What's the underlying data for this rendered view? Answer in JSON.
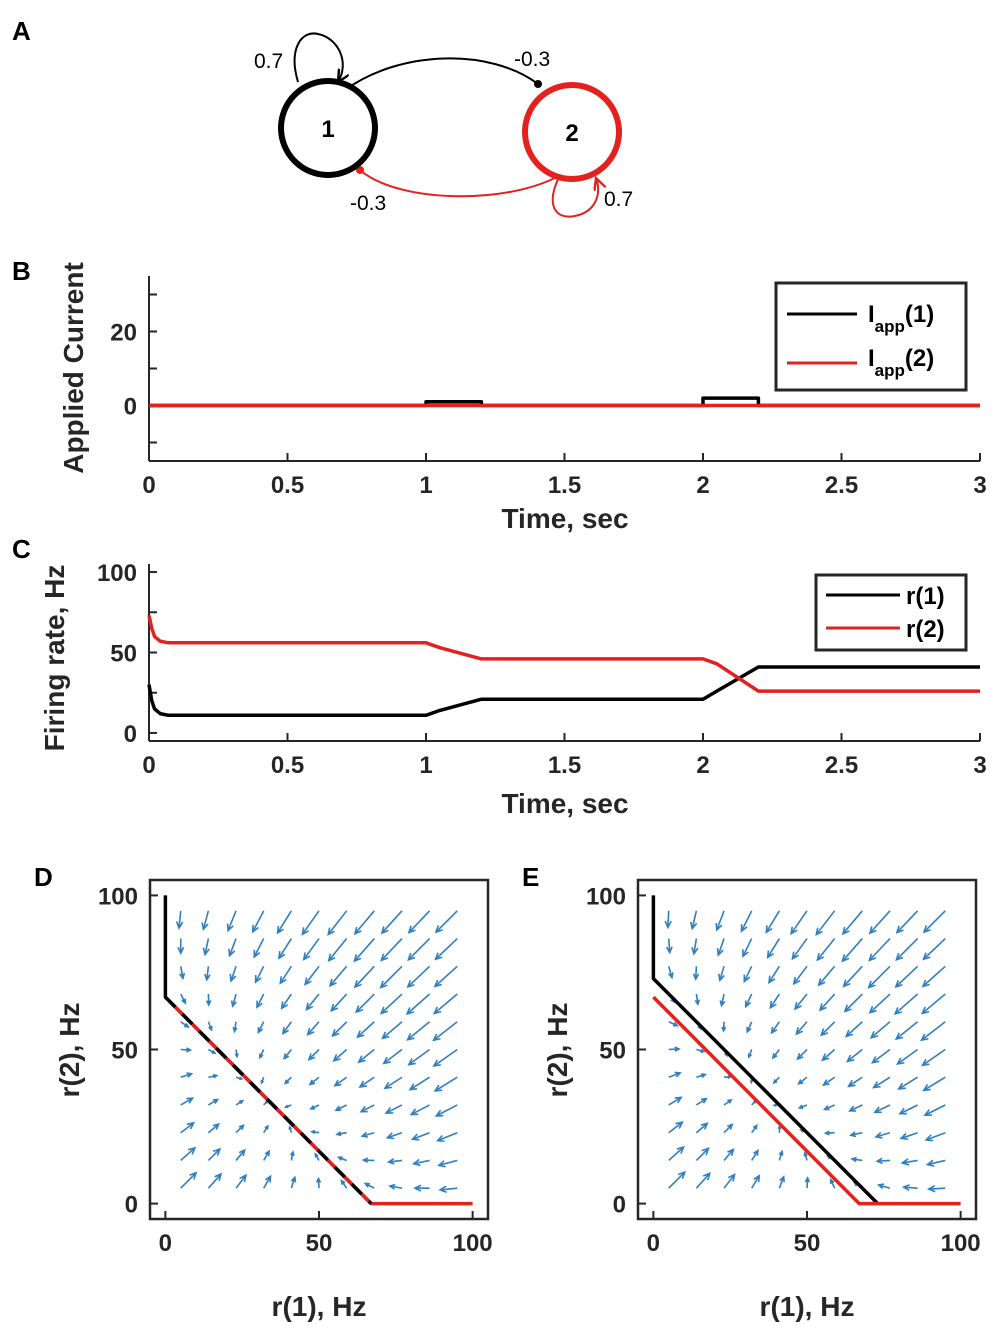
{
  "panel_labels": {
    "A": "A",
    "B": "B",
    "C": "C",
    "D": "D",
    "E": "E"
  },
  "network": {
    "node1": "1",
    "node2": "2",
    "self1": "0.7",
    "self2": "0.7",
    "w12": "-0.3",
    "w21": "-0.3"
  },
  "legend_b": {
    "s1_main": "I",
    "s1_sub": "app",
    "s1_tail": "(1)",
    "s2_main": "I",
    "s2_sub": "app",
    "s2_tail": "(2)"
  },
  "chart_data": [
    {
      "panel": "B",
      "type": "line",
      "xlabel": "Time, sec",
      "ylabel": "Applied Current",
      "xlim": [
        0,
        3
      ],
      "ylim": [
        -15,
        35
      ],
      "xticks": [
        "0",
        "0.5",
        "1",
        "1.5",
        "2",
        "2.5",
        "3"
      ],
      "yticks": [
        "0",
        "20"
      ],
      "series": [
        {
          "name": "Iapp(1)",
          "color": "#000000",
          "x": [
            0,
            1,
            1,
            1.2,
            1.2,
            2,
            2,
            2.2,
            2.2,
            3
          ],
          "y": [
            0,
            0,
            1,
            1,
            0,
            0,
            2,
            2,
            0,
            0
          ]
        },
        {
          "name": "Iapp(2)",
          "color": "#e3211e",
          "x": [
            0,
            3
          ],
          "y": [
            0,
            0
          ]
        }
      ]
    },
    {
      "panel": "C",
      "type": "line",
      "xlabel": "Time, sec",
      "ylabel": "Firing rate, Hz",
      "xlim": [
        0,
        3
      ],
      "ylim": [
        -5,
        105
      ],
      "xticks": [
        "0",
        "0.5",
        "1",
        "1.5",
        "2",
        "2.5",
        "3"
      ],
      "yticks": [
        "0",
        "50",
        "100"
      ],
      "series": [
        {
          "name": "r(1)",
          "color": "#000000",
          "x": [
            0,
            0.01,
            0.02,
            0.04,
            0.07,
            0.1,
            1.0,
            1.05,
            1.2,
            1.25,
            2.0,
            2.05,
            2.2,
            2.25,
            3.0
          ],
          "y": [
            30,
            20,
            15,
            12,
            11,
            11,
            11,
            14,
            21,
            21,
            21,
            26,
            41,
            41,
            41
          ]
        },
        {
          "name": "r(2)",
          "color": "#e3211e",
          "x": [
            0,
            0.01,
            0.02,
            0.04,
            0.07,
            0.1,
            1.0,
            1.05,
            1.2,
            1.25,
            2.0,
            2.05,
            2.2,
            2.25,
            3.0
          ],
          "y": [
            73,
            65,
            60,
            57,
            56,
            56,
            56,
            53,
            46,
            46,
            46,
            43,
            26,
            26,
            26
          ]
        }
      ]
    },
    {
      "panel": "D",
      "type": "line",
      "xlabel": "r(1), Hz",
      "ylabel": "r(2), Hz",
      "xlim": [
        -5,
        105
      ],
      "ylim": [
        -5,
        105
      ],
      "xticks": [
        "0",
        "50",
        "100"
      ],
      "yticks": [
        "0",
        "50",
        "100"
      ],
      "quiver": "vector field toward line r(1)+r(2)=67",
      "series": [
        {
          "name": "nullcline r(1)",
          "color": "#000000",
          "x": [
            0,
            0,
            67
          ],
          "y": [
            100,
            67,
            0
          ]
        },
        {
          "name": "nullcline r(2)",
          "color": "#e3211e",
          "x": [
            0,
            67,
            100
          ],
          "y": [
            67,
            0,
            0
          ]
        }
      ]
    },
    {
      "panel": "E",
      "type": "line",
      "xlabel": "r(1), Hz",
      "ylabel": "r(2), Hz",
      "xlim": [
        -5,
        105
      ],
      "ylim": [
        -5,
        105
      ],
      "xticks": [
        "0",
        "50",
        "100"
      ],
      "yticks": [
        "0",
        "50",
        "100"
      ],
      "quiver": "vector field toward line r(1)+r(2)=70",
      "series": [
        {
          "name": "nullcline r(1)",
          "color": "#000000",
          "x": [
            0,
            0,
            73
          ],
          "y": [
            100,
            73,
            0
          ]
        },
        {
          "name": "nullcline r(2)",
          "color": "#e3211e",
          "x": [
            0,
            67,
            100
          ],
          "y": [
            67,
            0,
            0
          ]
        }
      ]
    }
  ]
}
